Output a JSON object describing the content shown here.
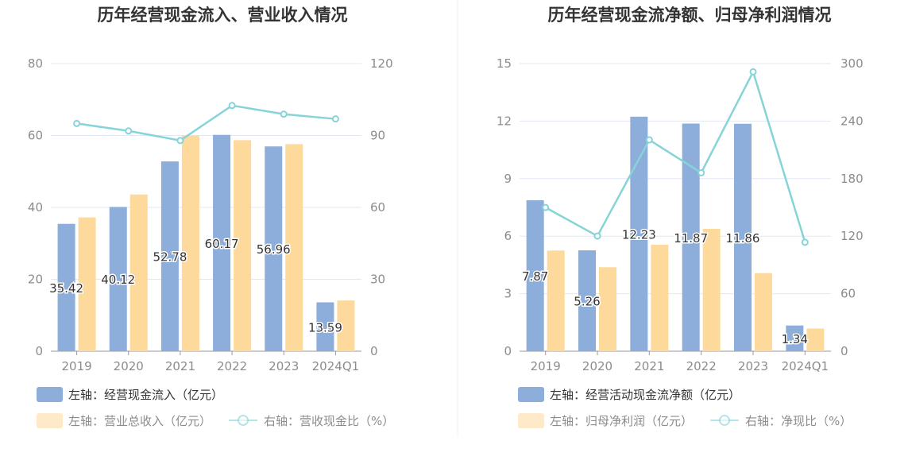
{
  "colors": {
    "cash": "#8dadda",
    "revenue": "#fed99c",
    "ratio": "#86d4d8",
    "grid": "#e3e7f2",
    "axis": "#999999"
  },
  "chart_data": [
    {
      "type": "bar",
      "title": "历年经营现金流入、营业收入情况",
      "categories": [
        "2019",
        "2020",
        "2021",
        "2022",
        "2023",
        "2024Q1"
      ],
      "left_axis": {
        "min": 0,
        "max": 80,
        "ticks": [
          "0",
          "20",
          "40",
          "60",
          "80"
        ]
      },
      "right_axis": {
        "min": 0,
        "max": 120,
        "ticks": [
          "0",
          "30",
          "60",
          "90",
          "120"
        ]
      },
      "series": [
        {
          "name": "左轴：经营现金流入（亿元）",
          "kind": "bar",
          "axis": "left",
          "color": "#8dadda",
          "values": [
            35.42,
            40.12,
            52.78,
            60.17,
            56.96,
            13.59
          ],
          "labels": [
            "35.42",
            "40.12",
            "52.78",
            "60.17",
            "56.96",
            "13.59"
          ]
        },
        {
          "name": "左轴：营业总收入（亿元）",
          "kind": "bar",
          "axis": "left",
          "color": "#fed99c",
          "values": [
            37.2,
            43.6,
            60.0,
            58.7,
            57.6,
            14.1
          ]
        },
        {
          "name": "右轴：营收现金比（%）",
          "kind": "line",
          "axis": "right",
          "color": "#86d4d8",
          "values": [
            95.0,
            91.9,
            87.9,
            102.5,
            98.9,
            96.9
          ]
        }
      ],
      "grid": true,
      "legend": "bottom-left"
    },
    {
      "type": "bar",
      "title": "历年经营现金流净额、归母净利润情况",
      "categories": [
        "2019",
        "2020",
        "2021",
        "2022",
        "2023",
        "2024Q1"
      ],
      "left_axis": {
        "min": 0,
        "max": 15,
        "ticks": [
          "0",
          "3",
          "6",
          "9",
          "12",
          "15"
        ]
      },
      "right_axis": {
        "min": 0,
        "max": 300,
        "ticks": [
          "0",
          "60",
          "120",
          "180",
          "240",
          "300"
        ]
      },
      "series": [
        {
          "name": "左轴：经营活动现金流净额（亿元）",
          "kind": "bar",
          "axis": "left",
          "color": "#8dadda",
          "values": [
            7.87,
            5.26,
            12.23,
            11.87,
            11.86,
            1.34
          ],
          "labels": [
            "7.87",
            "5.26",
            "12.23",
            "11.87",
            "11.86",
            "1.34"
          ]
        },
        {
          "name": "左轴：归母净利润（亿元）",
          "kind": "bar",
          "axis": "left",
          "color": "#fed99c",
          "values": [
            5.25,
            4.38,
            5.55,
            6.38,
            4.07,
            1.18
          ]
        },
        {
          "name": "右轴：净现比（%）",
          "kind": "line",
          "axis": "right",
          "color": "#86d4d8",
          "values": [
            149.9,
            120.1,
            220.4,
            186.1,
            291.4,
            113.6
          ]
        }
      ],
      "grid": true,
      "legend": "bottom-left"
    }
  ]
}
